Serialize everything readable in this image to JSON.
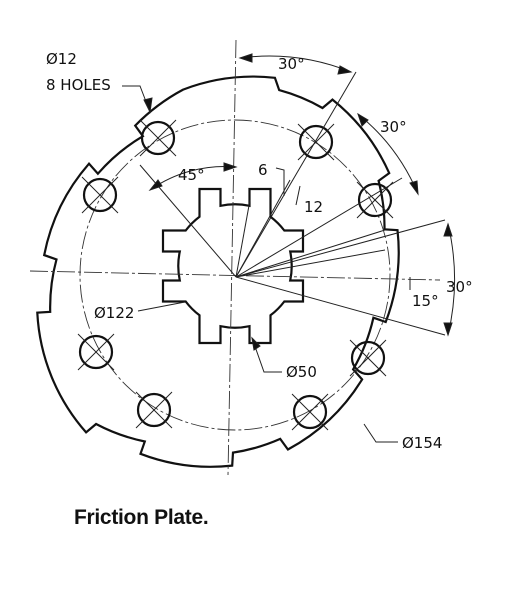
{
  "caption": "Friction Plate.",
  "labels": {
    "hole_dia": "Ø12",
    "hole_count": "8 HOLES",
    "angle_45": "45°",
    "angle_30_top": "30°",
    "angle_30_right_upper": "30°",
    "angle_30_right_lower": "30°",
    "angle_15": "15°",
    "slot_6": "6",
    "slot_12": "12",
    "dia_122": "Ø122",
    "dia_50": "Ø50",
    "dia_154": "Ø154"
  }
}
